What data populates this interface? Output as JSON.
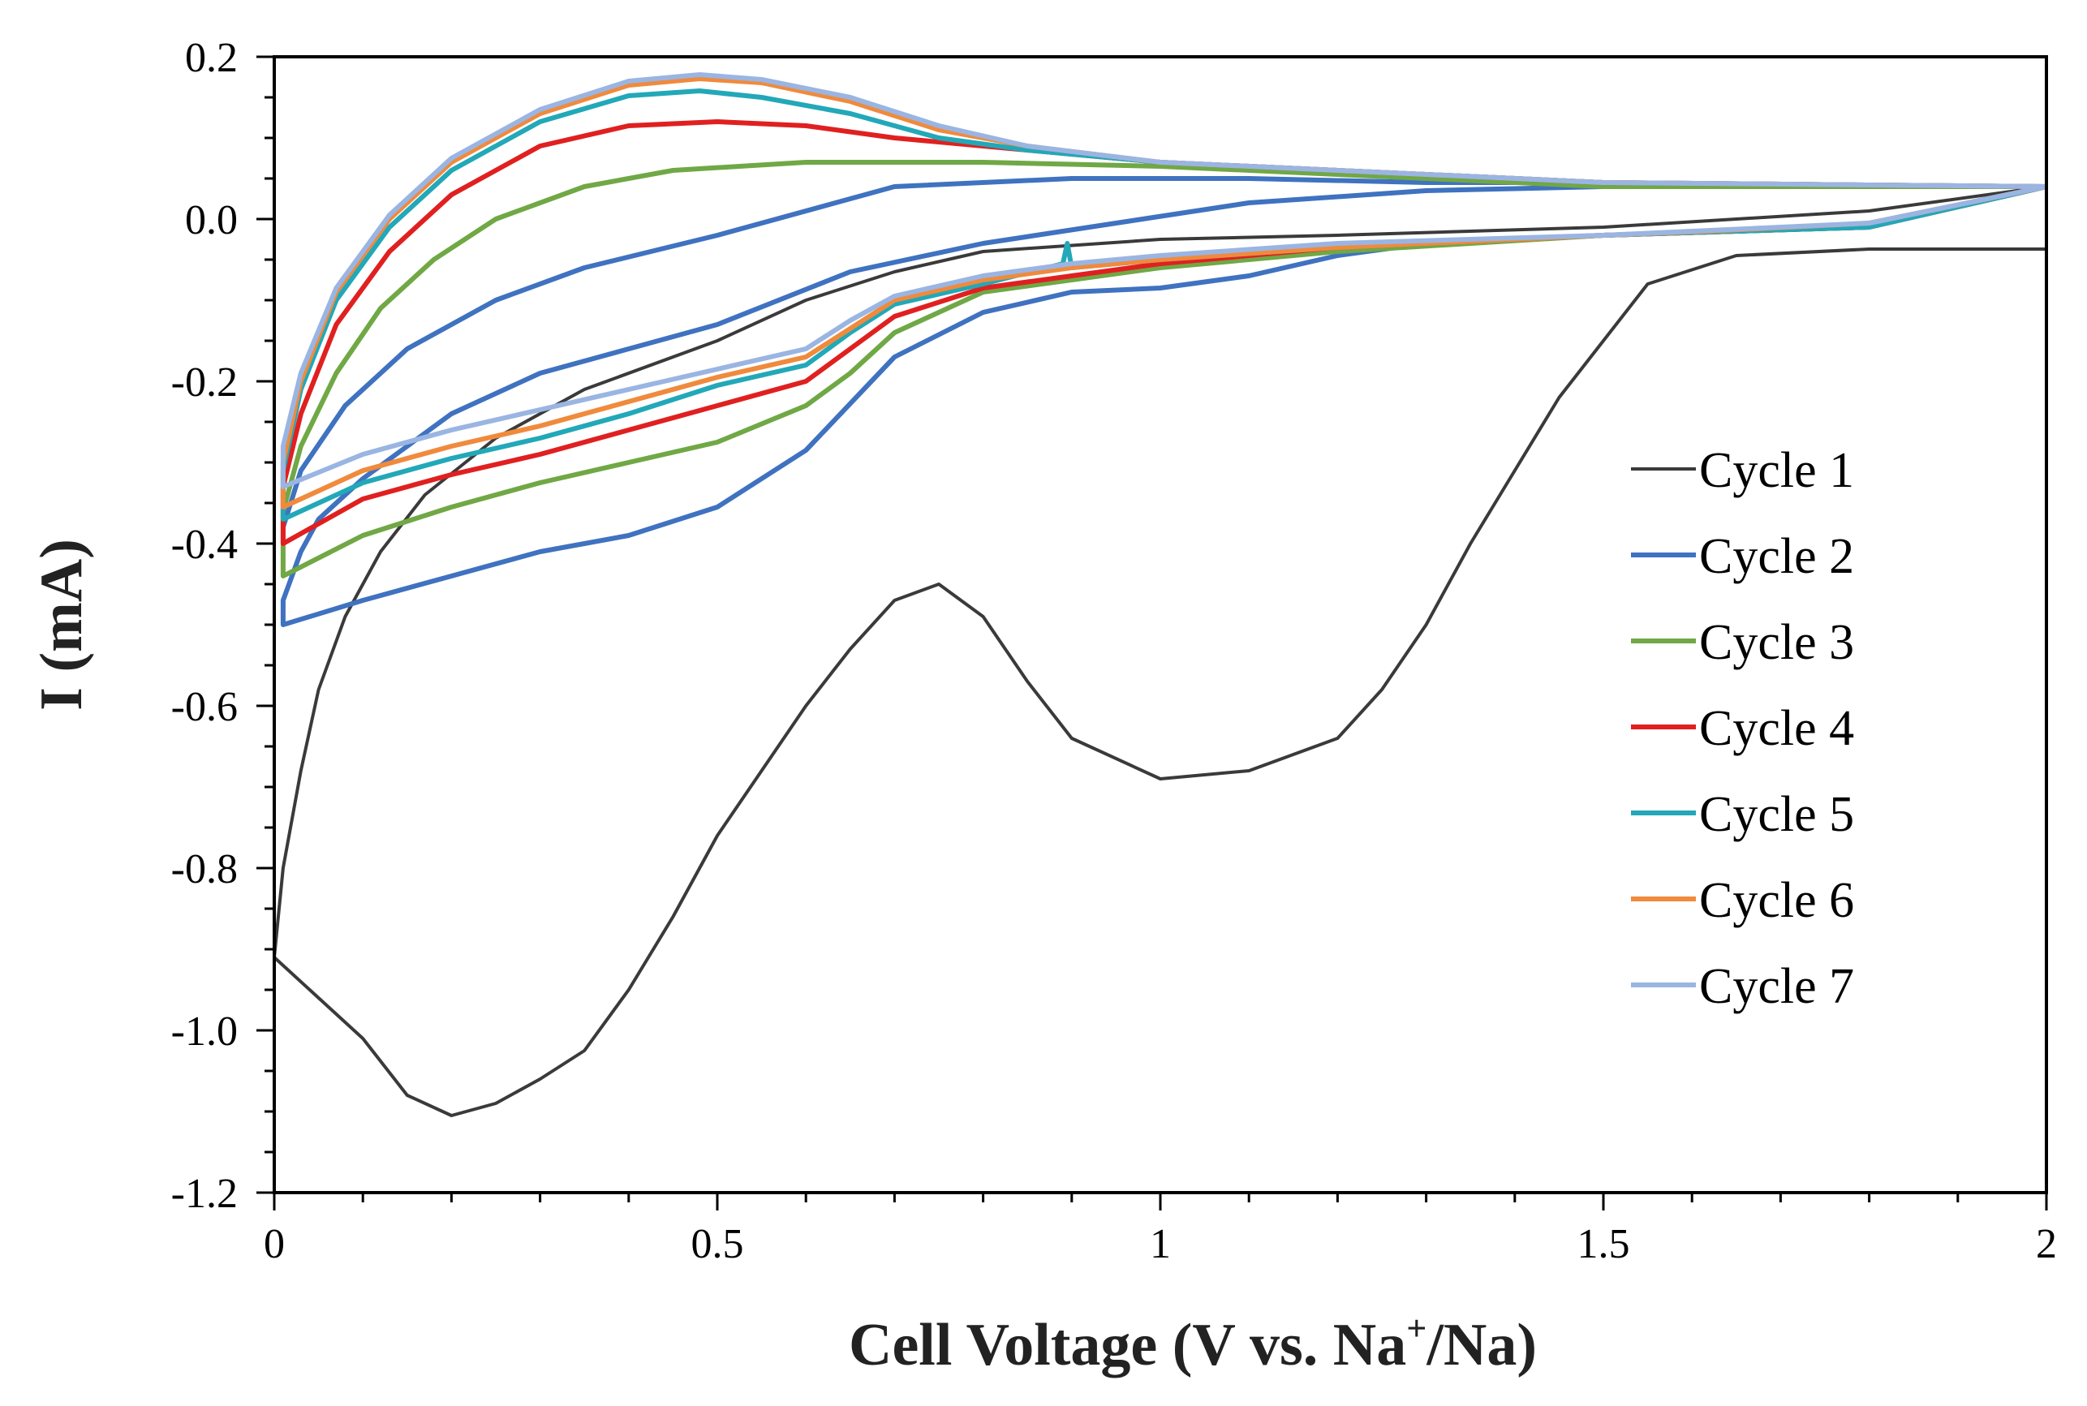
{
  "chart_data": {
    "type": "line",
    "title": "",
    "xlabel_main": "Cell Voltage (V vs. Na",
    "xlabel_sup": "+",
    "xlabel_tail": "/Na)",
    "ylabel": "I (mA)",
    "xlim": [
      0,
      2
    ],
    "ylim": [
      -1.2,
      0.2
    ],
    "x_ticks": [
      0,
      0.5,
      1,
      1.5,
      2
    ],
    "x_tick_labels": [
      "0",
      "0.5",
      "1",
      "1.5",
      "2"
    ],
    "y_ticks": [
      0.2,
      0.0,
      -0.2,
      -0.4,
      -0.6,
      -0.8,
      -1.0,
      -1.2
    ],
    "y_tick_labels": [
      "0.2",
      "0.0",
      "-0.2",
      "-0.4",
      "-0.6",
      "-0.8",
      "-1.0",
      "-1.2"
    ],
    "legend_position": "right",
    "series": [
      {
        "name": "Cycle 1",
        "color": "#3a3a3a",
        "points": [
          [
            2.0,
            -0.037
          ],
          [
            1.8,
            -0.037
          ],
          [
            1.65,
            -0.045
          ],
          [
            1.55,
            -0.08
          ],
          [
            1.5,
            -0.15
          ],
          [
            1.45,
            -0.22
          ],
          [
            1.4,
            -0.31
          ],
          [
            1.35,
            -0.4
          ],
          [
            1.3,
            -0.5
          ],
          [
            1.25,
            -0.58
          ],
          [
            1.2,
            -0.64
          ],
          [
            1.1,
            -0.68
          ],
          [
            1.0,
            -0.69
          ],
          [
            0.9,
            -0.64
          ],
          [
            0.85,
            -0.57
          ],
          [
            0.8,
            -0.49
          ],
          [
            0.75,
            -0.45
          ],
          [
            0.7,
            -0.47
          ],
          [
            0.65,
            -0.53
          ],
          [
            0.6,
            -0.6
          ],
          [
            0.5,
            -0.76
          ],
          [
            0.45,
            -0.86
          ],
          [
            0.4,
            -0.95
          ],
          [
            0.35,
            -1.025
          ],
          [
            0.3,
            -1.06
          ],
          [
            0.25,
            -1.09
          ],
          [
            0.2,
            -1.105
          ],
          [
            0.15,
            -1.08
          ],
          [
            0.1,
            -1.01
          ],
          [
            0.05,
            -0.96
          ],
          [
            0.0,
            -0.91
          ],
          [
            0.01,
            -0.8
          ],
          [
            0.03,
            -0.68
          ],
          [
            0.05,
            -0.58
          ],
          [
            0.08,
            -0.49
          ],
          [
            0.12,
            -0.41
          ],
          [
            0.17,
            -0.34
          ],
          [
            0.25,
            -0.27
          ],
          [
            0.35,
            -0.21
          ],
          [
            0.5,
            -0.15
          ],
          [
            0.6,
            -0.1
          ],
          [
            0.7,
            -0.065
          ],
          [
            0.8,
            -0.04
          ],
          [
            1.0,
            -0.025
          ],
          [
            1.2,
            -0.02
          ],
          [
            1.5,
            -0.01
          ],
          [
            1.8,
            0.01
          ],
          [
            2.0,
            0.04
          ]
        ]
      },
      {
        "name": "Cycle 2",
        "color": "#3f72c0",
        "points": [
          [
            2.0,
            0.04
          ],
          [
            1.8,
            0.04
          ],
          [
            1.5,
            0.04
          ],
          [
            1.3,
            0.035
          ],
          [
            1.1,
            0.02
          ],
          [
            0.95,
            -0.005
          ],
          [
            0.8,
            -0.03
          ],
          [
            0.65,
            -0.065
          ],
          [
            0.5,
            -0.13
          ],
          [
            0.4,
            -0.16
          ],
          [
            0.3,
            -0.19
          ],
          [
            0.2,
            -0.24
          ],
          [
            0.15,
            -0.28
          ],
          [
            0.1,
            -0.32
          ],
          [
            0.05,
            -0.37
          ],
          [
            0.03,
            -0.41
          ],
          [
            0.01,
            -0.47
          ],
          [
            0.01,
            -0.5
          ],
          [
            0.1,
            -0.47
          ],
          [
            0.2,
            -0.44
          ],
          [
            0.3,
            -0.41
          ],
          [
            0.4,
            -0.39
          ],
          [
            0.5,
            -0.355
          ],
          [
            0.6,
            -0.285
          ],
          [
            0.7,
            -0.17
          ],
          [
            0.8,
            -0.115
          ],
          [
            0.9,
            -0.09
          ],
          [
            1.0,
            -0.085
          ],
          [
            1.1,
            -0.07
          ],
          [
            1.2,
            -0.045
          ],
          [
            1.3,
            -0.03
          ],
          [
            1.5,
            -0.02
          ],
          [
            1.8,
            -0.01
          ],
          [
            2.0,
            0.04
          ],
          [
            1.8,
            0.04
          ],
          [
            1.5,
            0.045
          ],
          [
            1.3,
            0.045
          ],
          [
            1.1,
            0.05
          ],
          [
            0.9,
            0.05
          ],
          [
            0.7,
            0.04
          ],
          [
            0.5,
            -0.02
          ],
          [
            0.35,
            -0.06
          ],
          [
            0.25,
            -0.1
          ],
          [
            0.15,
            -0.16
          ],
          [
            0.08,
            -0.23
          ],
          [
            0.03,
            -0.31
          ],
          [
            0.01,
            -0.38
          ]
        ]
      },
      {
        "name": "Cycle 3",
        "color": "#70a845",
        "points": [
          [
            2.0,
            0.04
          ],
          [
            1.5,
            0.04
          ],
          [
            1.2,
            0.055
          ],
          [
            1.0,
            0.065
          ],
          [
            0.8,
            0.07
          ],
          [
            0.6,
            0.07
          ],
          [
            0.45,
            0.06
          ],
          [
            0.35,
            0.04
          ],
          [
            0.25,
            0.0
          ],
          [
            0.18,
            -0.05
          ],
          [
            0.12,
            -0.11
          ],
          [
            0.07,
            -0.19
          ],
          [
            0.03,
            -0.28
          ],
          [
            0.01,
            -0.36
          ],
          [
            0.01,
            -0.44
          ],
          [
            0.1,
            -0.39
          ],
          [
            0.2,
            -0.355
          ],
          [
            0.3,
            -0.325
          ],
          [
            0.4,
            -0.3
          ],
          [
            0.5,
            -0.275
          ],
          [
            0.6,
            -0.23
          ],
          [
            0.65,
            -0.19
          ],
          [
            0.7,
            -0.14
          ],
          [
            0.8,
            -0.09
          ],
          [
            0.9,
            -0.075
          ],
          [
            1.0,
            -0.06
          ],
          [
            1.2,
            -0.04
          ],
          [
            1.5,
            -0.02
          ],
          [
            1.8,
            -0.01
          ],
          [
            2.0,
            0.04
          ]
        ]
      },
      {
        "name": "Cycle 4",
        "color": "#e02020",
        "points": [
          [
            2.0,
            0.04
          ],
          [
            1.5,
            0.045
          ],
          [
            1.2,
            0.06
          ],
          [
            1.0,
            0.07
          ],
          [
            0.85,
            0.085
          ],
          [
            0.7,
            0.1
          ],
          [
            0.6,
            0.115
          ],
          [
            0.5,
            0.12
          ],
          [
            0.4,
            0.115
          ],
          [
            0.3,
            0.09
          ],
          [
            0.2,
            0.03
          ],
          [
            0.13,
            -0.04
          ],
          [
            0.07,
            -0.13
          ],
          [
            0.03,
            -0.24
          ],
          [
            0.01,
            -0.33
          ],
          [
            0.01,
            -0.4
          ],
          [
            0.1,
            -0.345
          ],
          [
            0.2,
            -0.315
          ],
          [
            0.3,
            -0.29
          ],
          [
            0.4,
            -0.26
          ],
          [
            0.5,
            -0.23
          ],
          [
            0.6,
            -0.2
          ],
          [
            0.65,
            -0.16
          ],
          [
            0.7,
            -0.12
          ],
          [
            0.8,
            -0.085
          ],
          [
            0.9,
            -0.07
          ],
          [
            1.0,
            -0.055
          ],
          [
            1.2,
            -0.035
          ],
          [
            1.5,
            -0.02
          ],
          [
            1.8,
            -0.01
          ],
          [
            2.0,
            0.04
          ]
        ]
      },
      {
        "name": "Cycle 5",
        "color": "#22a8b8",
        "points": [
          [
            2.0,
            0.04
          ],
          [
            1.5,
            0.045
          ],
          [
            1.2,
            0.06
          ],
          [
            1.0,
            0.07
          ],
          [
            0.85,
            0.085
          ],
          [
            0.75,
            0.1
          ],
          [
            0.65,
            0.13
          ],
          [
            0.55,
            0.15
          ],
          [
            0.48,
            0.158
          ],
          [
            0.4,
            0.152
          ],
          [
            0.3,
            0.12
          ],
          [
            0.2,
            0.06
          ],
          [
            0.13,
            -0.01
          ],
          [
            0.07,
            -0.1
          ],
          [
            0.03,
            -0.21
          ],
          [
            0.01,
            -0.31
          ],
          [
            0.01,
            -0.37
          ],
          [
            0.1,
            -0.325
          ],
          [
            0.2,
            -0.295
          ],
          [
            0.3,
            -0.27
          ],
          [
            0.4,
            -0.24
          ],
          [
            0.5,
            -0.205
          ],
          [
            0.6,
            -0.18
          ],
          [
            0.65,
            -0.14
          ],
          [
            0.7,
            -0.105
          ],
          [
            0.8,
            -0.08
          ],
          [
            0.89,
            -0.055
          ],
          [
            0.895,
            -0.03
          ],
          [
            0.9,
            -0.06
          ],
          [
            1.0,
            -0.05
          ],
          [
            1.2,
            -0.035
          ],
          [
            1.5,
            -0.02
          ],
          [
            1.8,
            -0.01
          ],
          [
            2.0,
            0.04
          ]
        ]
      },
      {
        "name": "Cycle 6",
        "color": "#f08a3c",
        "points": [
          [
            2.0,
            0.04
          ],
          [
            1.5,
            0.045
          ],
          [
            1.2,
            0.06
          ],
          [
            1.0,
            0.07
          ],
          [
            0.85,
            0.09
          ],
          [
            0.75,
            0.11
          ],
          [
            0.65,
            0.145
          ],
          [
            0.55,
            0.168
          ],
          [
            0.48,
            0.173
          ],
          [
            0.4,
            0.165
          ],
          [
            0.3,
            0.13
          ],
          [
            0.2,
            0.07
          ],
          [
            0.13,
            0.0
          ],
          [
            0.07,
            -0.09
          ],
          [
            0.03,
            -0.2
          ],
          [
            0.01,
            -0.3
          ],
          [
            0.01,
            -0.355
          ],
          [
            0.1,
            -0.31
          ],
          [
            0.2,
            -0.28
          ],
          [
            0.3,
            -0.255
          ],
          [
            0.4,
            -0.225
          ],
          [
            0.5,
            -0.195
          ],
          [
            0.6,
            -0.17
          ],
          [
            0.65,
            -0.135
          ],
          [
            0.7,
            -0.1
          ],
          [
            0.8,
            -0.075
          ],
          [
            0.9,
            -0.06
          ],
          [
            1.0,
            -0.05
          ],
          [
            1.2,
            -0.035
          ],
          [
            1.5,
            -0.02
          ],
          [
            1.62,
            -0.015
          ],
          [
            1.8,
            -0.005
          ],
          [
            2.0,
            0.04
          ]
        ]
      },
      {
        "name": "Cycle 7",
        "color": "#9ab5e2",
        "points": [
          [
            2.0,
            0.04
          ],
          [
            1.5,
            0.045
          ],
          [
            1.2,
            0.06
          ],
          [
            1.0,
            0.07
          ],
          [
            0.85,
            0.09
          ],
          [
            0.75,
            0.115
          ],
          [
            0.65,
            0.15
          ],
          [
            0.55,
            0.172
          ],
          [
            0.48,
            0.178
          ],
          [
            0.4,
            0.17
          ],
          [
            0.3,
            0.135
          ],
          [
            0.2,
            0.075
          ],
          [
            0.13,
            0.005
          ],
          [
            0.07,
            -0.085
          ],
          [
            0.03,
            -0.19
          ],
          [
            0.01,
            -0.28
          ],
          [
            0.01,
            -0.33
          ],
          [
            0.1,
            -0.29
          ],
          [
            0.2,
            -0.26
          ],
          [
            0.3,
            -0.235
          ],
          [
            0.4,
            -0.21
          ],
          [
            0.5,
            -0.185
          ],
          [
            0.6,
            -0.16
          ],
          [
            0.65,
            -0.125
          ],
          [
            0.7,
            -0.095
          ],
          [
            0.8,
            -0.07
          ],
          [
            0.9,
            -0.055
          ],
          [
            1.0,
            -0.045
          ],
          [
            1.2,
            -0.03
          ],
          [
            1.5,
            -0.02
          ],
          [
            1.8,
            -0.005
          ],
          [
            2.0,
            0.04
          ]
        ]
      }
    ]
  }
}
